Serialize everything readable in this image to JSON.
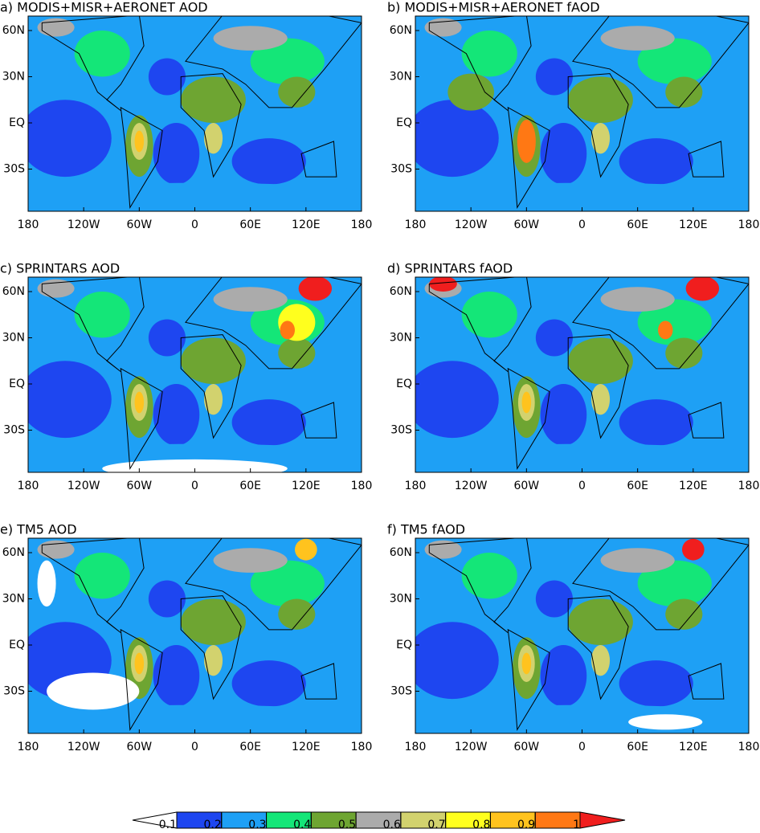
{
  "panels": [
    {
      "title": "a) MODIS+MISR+AERONET AOD"
    },
    {
      "title": "b) MODIS+MISR+AERONET fAOD"
    },
    {
      "title": "c) SPRINTARS AOD"
    },
    {
      "title": "d) SPRINTARS fAOD"
    },
    {
      "title": "e) TM5 AOD"
    },
    {
      "title": "f) TM5 fAOD"
    }
  ],
  "lon_labels": [
    "180",
    "120W",
    "60W",
    "0",
    "60E",
    "120E",
    "180"
  ],
  "lat_labels": [
    "60N",
    "30N",
    "EQ",
    "30S"
  ],
  "colorbar": {
    "levels": [
      0.1,
      0.2,
      0.3,
      0.4,
      0.5,
      0.6,
      0.7,
      0.8,
      0.9,
      1
    ],
    "colors": [
      "#ffffff",
      "#1e46f0",
      "#1ea0f5",
      "#14e678",
      "#6ea532",
      "#ababab",
      "#d2d26e",
      "#ffff1e",
      "#ffc31e",
      "#ff7814",
      "#f01e1e"
    ]
  }
}
